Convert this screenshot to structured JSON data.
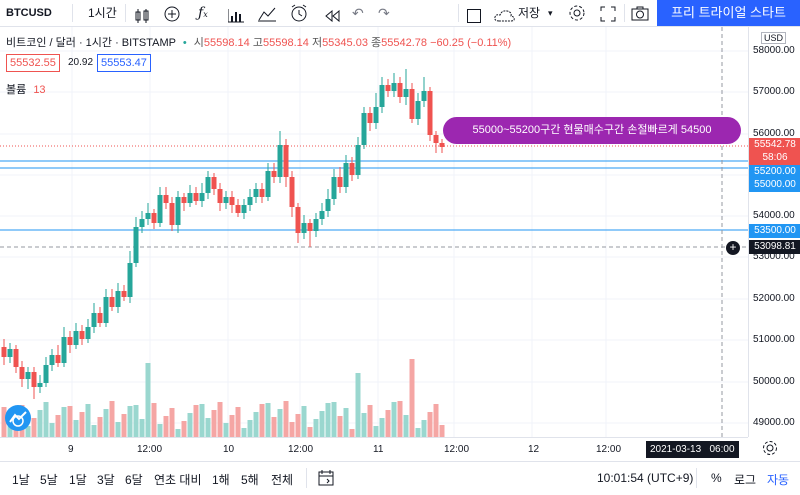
{
  "toolbar": {
    "symbol": "BTCUSD",
    "interval": "1시간",
    "save_label": "저장",
    "trial_button": "프리 트라이얼 스타트"
  },
  "legend": {
    "title": "비트코인 / 달러 · 1시간 · BITSTAMP",
    "open_label": "시",
    "open": "55598.14",
    "high_label": "고",
    "high": "55598.14",
    "low_label": "저",
    "low": "55345.03",
    "close_label": "종",
    "close": "55542.78",
    "change": "−60.25 (−0.11%)",
    "bid": "55532.55",
    "spread": "20.92",
    "ask": "55553.47",
    "volume_label": "볼륨",
    "volume": "13"
  },
  "annotation": {
    "text": "55000~55200구간  현물매수구간  손절빠르게 54500"
  },
  "price_axis": {
    "currency": "USD",
    "ticks": [
      "58000.00",
      "57000.00",
      "56000.00",
      "55000.00",
      "54000.00",
      "53000.00",
      "52000.00",
      "51000.00",
      "50000.00",
      "49000.00"
    ],
    "current_price": "55542.78",
    "countdown": "58:06",
    "line_labels": [
      "55200.00",
      "55000.00",
      "53500.00"
    ],
    "crosshair_price": "53098.81"
  },
  "time_axis": {
    "labels": [
      "9",
      "12:00",
      "10",
      "12:00",
      "11",
      "12:00",
      "12",
      "12:00"
    ],
    "crosshair_time": "2021-03-13   06:00"
  },
  "bottom_bar": {
    "ranges": [
      "1날",
      "5날",
      "1달",
      "3달",
      "6달",
      "연초 대비",
      "1해",
      "5해",
      "전체"
    ],
    "clock": "10:01:54 (UTC+9)",
    "percent": "%",
    "log": "로그",
    "auto": "자동"
  },
  "colors": {
    "up": "#26a69a",
    "down": "#ef5350",
    "accent": "#2962ff",
    "annotation": "#9c27b0",
    "hline": "#2196f3"
  }
}
